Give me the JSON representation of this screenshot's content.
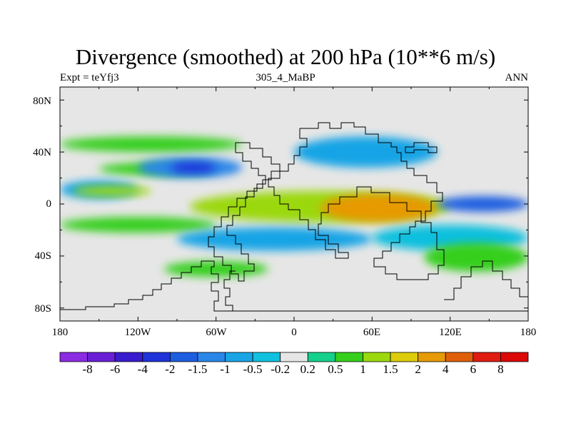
{
  "chart_data": {
    "type": "heatmap",
    "title": "Divergence (smoothed) at 200 hPa (10**6 m/s)",
    "subtitle_left": "Expt = teYfj3",
    "subtitle_center": "305_4_MaBP",
    "subtitle_right": "ANN",
    "x_ticks": [
      "180",
      "120W",
      "60W",
      "0",
      "60E",
      "120E",
      "180"
    ],
    "x_values": [
      -180,
      -120,
      -60,
      0,
      60,
      120,
      180
    ],
    "y_ticks": [
      "80N",
      "40N",
      "0",
      "40S",
      "80S"
    ],
    "y_values": [
      80,
      40,
      0,
      -40,
      -80
    ],
    "xlim": [
      -180,
      180
    ],
    "ylim": [
      -90,
      90
    ],
    "colorbar": {
      "labels": [
        "-8",
        "-6",
        "-4",
        "-2",
        "-1.5",
        "-1",
        "-0.5",
        "-0.2",
        "0.2",
        "0.5",
        "1",
        "1.5",
        "2",
        "4",
        "6",
        "8"
      ],
      "colors": [
        "#8b2be2",
        "#6a1fd6",
        "#3a1ccf",
        "#1f33d9",
        "#1d5ee0",
        "#2a86e8",
        "#19a4e6",
        "#10c0de",
        "#e6e6e6",
        "#14d08a",
        "#36cf1c",
        "#9bd80e",
        "#dccc0a",
        "#e69a06",
        "#e0600a",
        "#e01c10",
        "#dc0808"
      ]
    },
    "features": [
      {
        "lon": [
          -180,
          -40
        ],
        "lat": [
          40,
          52
        ],
        "value": 0.5
      },
      {
        "lon": [
          -150,
          -60
        ],
        "lat": [
          22,
          32
        ],
        "value": 0.5
      },
      {
        "lon": [
          -120,
          -40
        ],
        "lat": [
          20,
          36
        ],
        "value": -1.5
      },
      {
        "lon": [
          -95,
          -60
        ],
        "lat": [
          24,
          32
        ],
        "value": -4
      },
      {
        "lon": [
          -180,
          -120
        ],
        "lat": [
          4,
          18
        ],
        "value": -1
      },
      {
        "lon": [
          -170,
          -110
        ],
        "lat": [
          6,
          14
        ],
        "value": 1
      },
      {
        "lon": [
          -80,
          120
        ],
        "lat": [
          -14,
          10
        ],
        "value": 1
      },
      {
        "lon": [
          20,
          110
        ],
        "lat": [
          -14,
          8
        ],
        "value": 2
      },
      {
        "lon": [
          110,
          180
        ],
        "lat": [
          -6,
          6
        ],
        "value": -2
      },
      {
        "lon": [
          -180,
          -60
        ],
        "lat": [
          -22,
          -10
        ],
        "value": 0.5
      },
      {
        "lon": [
          -90,
          60
        ],
        "lat": [
          -36,
          -18
        ],
        "value": -1
      },
      {
        "lon": [
          60,
          180
        ],
        "lat": [
          -36,
          -16
        ],
        "value": -0.5
      },
      {
        "lon": [
          -100,
          -20
        ],
        "lat": [
          -56,
          -44
        ],
        "value": 0.5
      },
      {
        "lon": [
          100,
          180
        ],
        "lat": [
          -52,
          -30
        ],
        "value": 0.5
      },
      {
        "lon": [
          0,
          110
        ],
        "lat": [
          28,
          52
        ],
        "value": -1
      }
    ]
  }
}
